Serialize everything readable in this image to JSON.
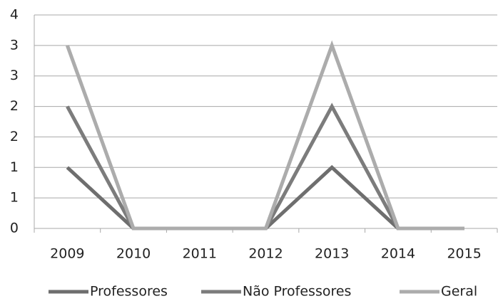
{
  "chart_data": {
    "type": "line",
    "categories": [
      "2009",
      "2010",
      "2011",
      "2012",
      "2013",
      "2014",
      "2015"
    ],
    "series": [
      {
        "name": "Professores",
        "color": "#6e6e6e",
        "values": [
          1,
          0,
          0,
          0,
          1,
          0,
          0
        ]
      },
      {
        "name": "Não Professores",
        "color": "#7c7c7c",
        "values": [
          2,
          0,
          0,
          0,
          2,
          0,
          0
        ]
      },
      {
        "name": "Geral",
        "color": "#acacac",
        "values": [
          3,
          0,
          0,
          0,
          3,
          0,
          0
        ]
      }
    ],
    "ylim": [
      0,
      3.5
    ],
    "yticks": [
      0,
      {
        "value": 0.5,
        "label": "1"
      },
      1,
      {
        "value": 1.5,
        "label": "2"
      },
      2,
      {
        "value": 2.5,
        "label": "3"
      },
      3,
      {
        "value": 3.5,
        "label": "4"
      }
    ],
    "grid": true,
    "legend": "bottom"
  }
}
